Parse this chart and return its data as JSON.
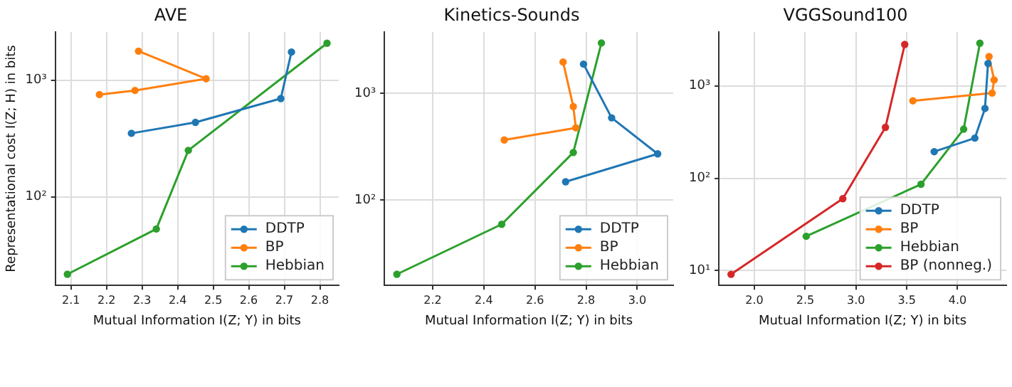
{
  "chart_data": [
    {
      "type": "line",
      "title": "AVE",
      "xlabel": "Mutual Information I(Z; Y) in bits",
      "ylabel": "Representational cost I(Z; H) in bits",
      "log": "y",
      "grid": true,
      "legend": "bottom right",
      "marker": "circle",
      "xlim": [
        2.056,
        2.853
      ],
      "ylim": [
        17.4,
        2590
      ],
      "xticks": [
        2.1,
        2.2,
        2.3,
        2.4,
        2.5,
        2.6,
        2.7,
        2.8
      ],
      "yticks": [
        {
          "value": 100,
          "label": "10²"
        },
        {
          "value": 1000,
          "label": "10³"
        }
      ],
      "series": [
        {
          "name": "DDTP",
          "color": "#1f77b4",
          "x": [
            2.27,
            2.45,
            2.69,
            2.72
          ],
          "values": [
            350,
            434,
            695,
            1740
          ]
        },
        {
          "name": "BP",
          "color": "#ff7f0e",
          "x": [
            2.18,
            2.28,
            2.48,
            2.29
          ],
          "values": [
            752,
            815,
            1027,
            1770
          ]
        },
        {
          "name": "Hebbian",
          "color": "#2ca02c",
          "x": [
            2.09,
            2.34,
            2.43,
            2.82
          ],
          "values": [
            21.7,
            53,
            250,
            2070
          ]
        }
      ]
    },
    {
      "type": "line",
      "title": "Kinetics-Sounds",
      "xlabel": "Mutual Information I(Z; Y) in bits",
      "log": "y",
      "grid": true,
      "legend": "bottom right",
      "marker": "circle",
      "xlim": [
        2.011,
        3.141
      ],
      "ylim": [
        15.7,
        3800
      ],
      "xticks": [
        2.2,
        2.4,
        2.6,
        2.8,
        {
          "value": 3,
          "label": "3.0"
        }
      ],
      "yticks": [
        {
          "value": 100,
          "label": "10²"
        },
        {
          "value": 1000,
          "label": "10³"
        }
      ],
      "series": [
        {
          "name": "DDTP",
          "color": "#1f77b4",
          "x": [
            2.72,
            3.08,
            2.9,
            2.79
          ],
          "values": [
            148,
            271,
            591,
            1890
          ]
        },
        {
          "name": "BP",
          "color": "#ff7f0e",
          "x": [
            2.48,
            2.76,
            2.75,
            2.71
          ],
          "values": [
            366,
            476,
            754,
            1980
          ]
        },
        {
          "name": "Hebbian",
          "color": "#2ca02c",
          "x": [
            2.06,
            2.47,
            2.75,
            2.86
          ],
          "values": [
            20,
            59,
            279,
            2990
          ]
        }
      ]
    },
    {
      "type": "line",
      "title": "VGGSound100",
      "xlabel": "Mutual Information I(Z; Y) in bits",
      "log": "y",
      "grid": true,
      "legend": "bottom right",
      "marker": "circle",
      "xlim": [
        1.65,
        4.48
      ],
      "ylim": [
        6.9,
        3850
      ],
      "xticks": [
        {
          "value": 2,
          "label": "2.0"
        },
        2.5,
        {
          "value": 3,
          "label": "3.0"
        },
        3.5,
        {
          "value": 4,
          "label": "4.0"
        }
      ],
      "yticks": [
        {
          "value": 10,
          "label": "10¹"
        },
        {
          "value": 100,
          "label": "10²"
        },
        {
          "value": 1000,
          "label": "10³"
        }
      ],
      "series": [
        {
          "name": "DDTP",
          "color": "#1f77b4",
          "x": [
            3.77,
            4.17,
            4.27,
            4.3
          ],
          "values": [
            194,
            272,
            570,
            1750
          ]
        },
        {
          "name": "BP",
          "color": "#ff7f0e",
          "x": [
            3.56,
            4.34,
            4.36,
            4.31
          ],
          "values": [
            690,
            836,
            1160,
            2080
          ]
        },
        {
          "name": "Hebbian",
          "color": "#2ca02c",
          "x": [
            2.51,
            3.64,
            4.06,
            4.22
          ],
          "values": [
            23.5,
            86,
            340,
            2900
          ]
        },
        {
          "name": "BP (nonneg.)",
          "color": "#d62728",
          "x": [
            1.77,
            2.87,
            3.29,
            3.48
          ],
          "values": [
            9.1,
            60,
            356,
            2810
          ]
        }
      ]
    }
  ]
}
